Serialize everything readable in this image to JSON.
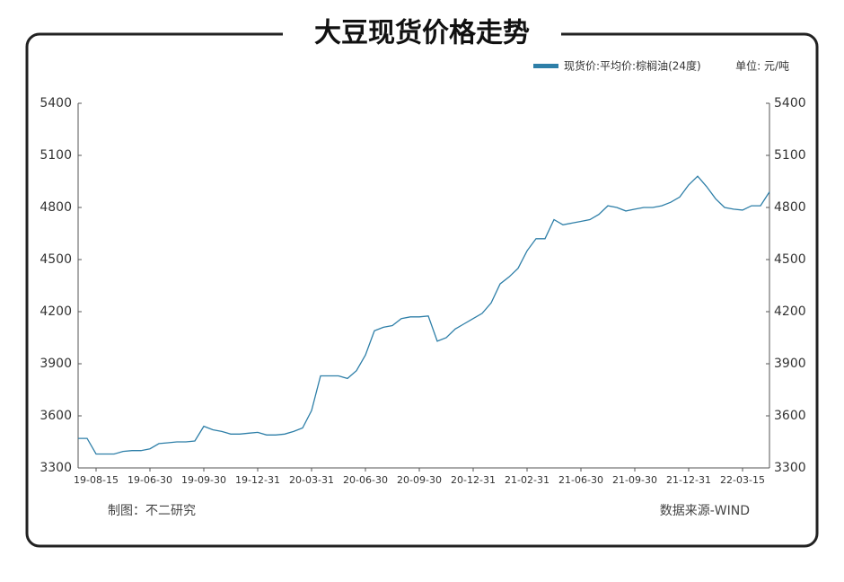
{
  "chart_data": {
    "type": "line",
    "title": "大豆现货价格走势",
    "unit": "单位: 元/吨",
    "credit": "制图：不二研究",
    "source": "数据来源-WIND",
    "categories": [
      null,
      null,
      "19-08-15",
      null,
      null,
      null,
      null,
      null,
      "19-06-30",
      null,
      null,
      null,
      null,
      null,
      "19-09-30",
      null,
      null,
      null,
      null,
      null,
      "19-12-31",
      null,
      null,
      null,
      null,
      null,
      "20-03-31",
      null,
      null,
      null,
      null,
      null,
      "20-06-30",
      null,
      null,
      null,
      null,
      null,
      "20-09-30",
      null,
      null,
      null,
      null,
      null,
      "20-12-31",
      null,
      null,
      null,
      null,
      null,
      "21-02-31",
      null,
      null,
      null,
      null,
      null,
      "21-06-30",
      null,
      null,
      null,
      null,
      null,
      "21-09-30",
      null,
      null,
      null,
      null,
      null,
      "21-12-31",
      null,
      null,
      null,
      null,
      null,
      "22-03-15",
      null,
      null,
      null
    ],
    "series": [
      {
        "name": "现货价:平均价:棕榈油(24度)",
        "color": "#2e7fa8",
        "values": [
          3470,
          3470,
          3380,
          3380,
          3380,
          3395,
          3400,
          3400,
          3410,
          3440,
          3445,
          3450,
          3450,
          3455,
          3540,
          3520,
          3510,
          3495,
          3495,
          3500,
          3505,
          3490,
          3490,
          3495,
          3510,
          3530,
          3630,
          3830,
          3830,
          3830,
          3815,
          3860,
          3950,
          4090,
          4110,
          4120,
          4160,
          4170,
          4170,
          4175,
          4030,
          4050,
          4100,
          4130,
          4160,
          4190,
          4250,
          4360,
          4400,
          4450,
          4550,
          4620,
          4620,
          4730,
          4700,
          4710,
          4720,
          4730,
          4760,
          4810,
          4800,
          4780,
          4790,
          4800,
          4800,
          4810,
          4830,
          4860,
          4930,
          4980,
          4920,
          4850,
          4800,
          4790,
          4785,
          4810,
          4810,
          4890
        ]
      }
    ],
    "ylim": [
      3300,
      5400
    ],
    "yticks": [
      3300,
      3600,
      3900,
      4200,
      4500,
      4800,
      5100,
      5400
    ],
    "y2lim": [
      3300,
      5400
    ],
    "y2ticks": [
      3300,
      3600,
      3900,
      4200,
      4500,
      4800,
      5100,
      5400
    ],
    "grid": false,
    "legend": "top-right"
  }
}
